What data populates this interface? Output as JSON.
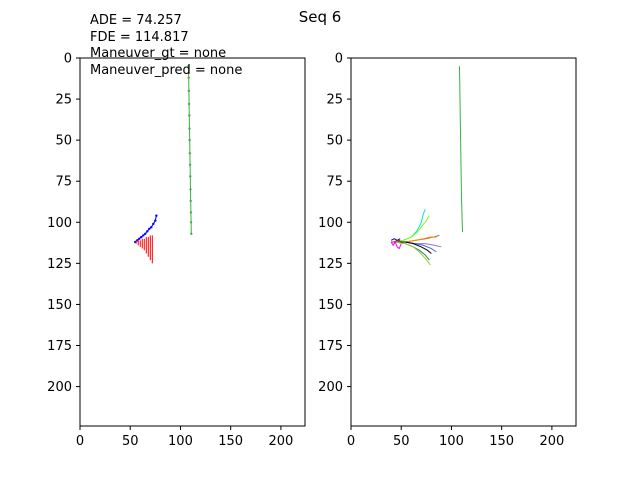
{
  "figure": {
    "title": "Seq 6",
    "annotations": [
      "ADE = 74.257",
      "FDE = 114.817",
      "Maneuver_gt = none",
      "Maneuver_pred = none"
    ]
  },
  "chart_data": [
    {
      "type": "scatter",
      "title": "",
      "xlabel": "",
      "ylabel": "",
      "xlim": [
        0,
        224
      ],
      "ylim": [
        224,
        0
      ],
      "y_inverted": true,
      "grid": false,
      "xticks": [
        0,
        50,
        100,
        150,
        200
      ],
      "yticks": [
        0,
        25,
        50,
        75,
        100,
        125,
        150,
        175,
        200
      ],
      "series": [
        {
          "role": "neighbor-track",
          "color": "#3cb044",
          "x": [
            108,
            108.2,
            108.4,
            108.6,
            108.8,
            109,
            109.2,
            109.4,
            109.6,
            109.8,
            110,
            110.2,
            110.4,
            110.6,
            110.8
          ],
          "y": [
            5,
            12,
            20,
            28,
            35,
            43,
            50,
            58,
            65,
            72,
            80,
            87,
            94,
            100,
            107
          ]
        },
        {
          "role": "history",
          "color": "#0000ff",
          "x": [
            55,
            57,
            59,
            61,
            63,
            65,
            67,
            69,
            71,
            73,
            75,
            76
          ],
          "y": [
            112,
            111,
            110,
            109,
            108,
            107,
            105.5,
            104,
            103,
            101,
            99,
            96
          ]
        },
        {
          "role": "prediction-spread",
          "color": "#ff0000",
          "x": [
            56,
            58,
            60,
            62,
            64,
            66,
            68,
            70,
            72
          ],
          "y_top": [
            111,
            111,
            111,
            110,
            110,
            109,
            109,
            108,
            108
          ],
          "y_bottom": [
            113,
            114,
            115,
            116,
            117,
            119,
            121,
            123,
            125
          ]
        }
      ]
    },
    {
      "type": "line",
      "title": "",
      "xlabel": "",
      "ylabel": "",
      "xlim": [
        0,
        224
      ],
      "ylim": [
        224,
        0
      ],
      "y_inverted": true,
      "grid": false,
      "xticks": [
        0,
        50,
        100,
        150,
        200
      ],
      "yticks": [
        0,
        25,
        50,
        75,
        100,
        125,
        150,
        175,
        200
      ],
      "series": [
        {
          "color": "#3cb044",
          "x": [
            108,
            108.5,
            109,
            109.5,
            110,
            111
          ],
          "y": [
            5,
            25,
            45,
            65,
            85,
            106
          ]
        },
        {
          "color": "#00e5e5",
          "x": [
            44,
            52,
            60,
            66,
            70,
            72,
            74
          ],
          "y": [
            112,
            111,
            109,
            105,
            100,
            95,
            92
          ]
        },
        {
          "color": "#7fff00",
          "x": [
            44,
            52,
            60,
            66,
            71,
            75,
            78
          ],
          "y": [
            112,
            111,
            109,
            106,
            102,
            99,
            96
          ]
        },
        {
          "color": "#a0522d",
          "x": [
            44,
            54,
            64,
            74,
            82,
            88
          ],
          "y": [
            112,
            112,
            111,
            110,
            109,
            108
          ]
        },
        {
          "color": "#ff8c00",
          "x": [
            44,
            54,
            64,
            72,
            79,
            85
          ],
          "y": [
            112,
            112,
            111,
            110,
            109,
            109
          ]
        },
        {
          "color": "#9370db",
          "x": [
            44,
            54,
            64,
            74,
            83,
            90
          ],
          "y": [
            112,
            112,
            113,
            113,
            114,
            115
          ]
        },
        {
          "color": "#4169e1",
          "x": [
            44,
            54,
            64,
            72,
            80,
            85
          ],
          "y": [
            112,
            112,
            113,
            114,
            116,
            118
          ]
        },
        {
          "color": "#000000",
          "x": [
            44,
            54,
            62,
            70,
            76,
            80
          ],
          "y": [
            112,
            112,
            113,
            115,
            117,
            119
          ]
        },
        {
          "color": "#2e8b57",
          "x": [
            44,
            54,
            62,
            68,
            74,
            78
          ],
          "y": [
            112,
            113,
            115,
            117,
            120,
            123
          ]
        },
        {
          "color": "#9acd32",
          "x": [
            44,
            54,
            62,
            68,
            74,
            79
          ],
          "y": [
            112,
            113,
            115,
            118,
            122,
            126
          ]
        },
        {
          "color": "#ff00ff",
          "x": [
            40,
            42,
            44,
            46,
            48,
            50
          ],
          "y": [
            112,
            114,
            112,
            115,
            116,
            113
          ]
        },
        {
          "color": "#ff0000",
          "x": [
            40,
            43,
            46,
            49
          ],
          "y": [
            112,
            112,
            111,
            111
          ]
        },
        {
          "color": "#0000ff",
          "x": [
            40,
            43,
            46,
            49
          ],
          "y": [
            111,
            110,
            111,
            110
          ]
        }
      ]
    }
  ]
}
